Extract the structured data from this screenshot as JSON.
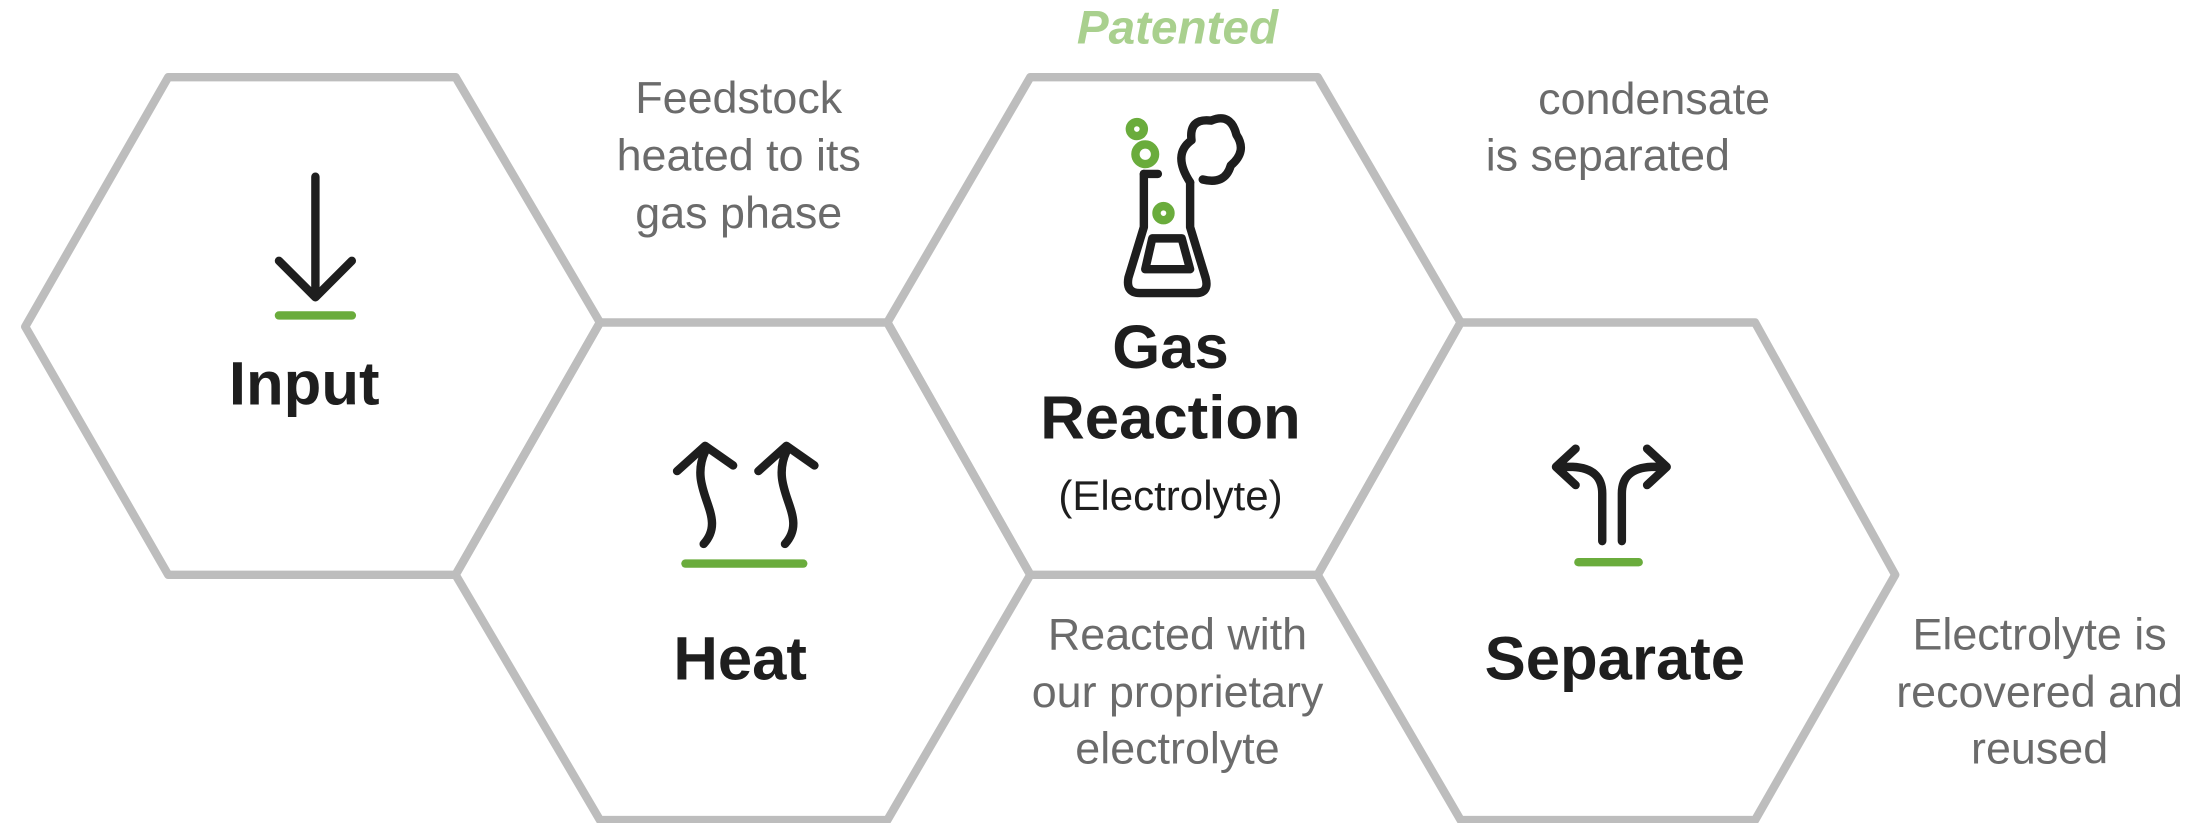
{
  "patent_label": "Patented",
  "steps": [
    {
      "label": [
        "Input"
      ]
    },
    {
      "label": [
        "Heat"
      ]
    },
    {
      "label": [
        "Gas",
        "Reaction"
      ],
      "sublabel": "(Electrolyte)"
    },
    {
      "label": [
        "Separate"
      ]
    }
  ],
  "notes": [
    [
      "Feedstock",
      "heated to its",
      "gas phase"
    ],
    [
      "condensate",
      "is separated"
    ],
    [
      "Reacted with",
      "our proprietary",
      "electrolyte"
    ],
    [
      "Electrolyte is",
      "recovered and",
      "reused"
    ]
  ]
}
